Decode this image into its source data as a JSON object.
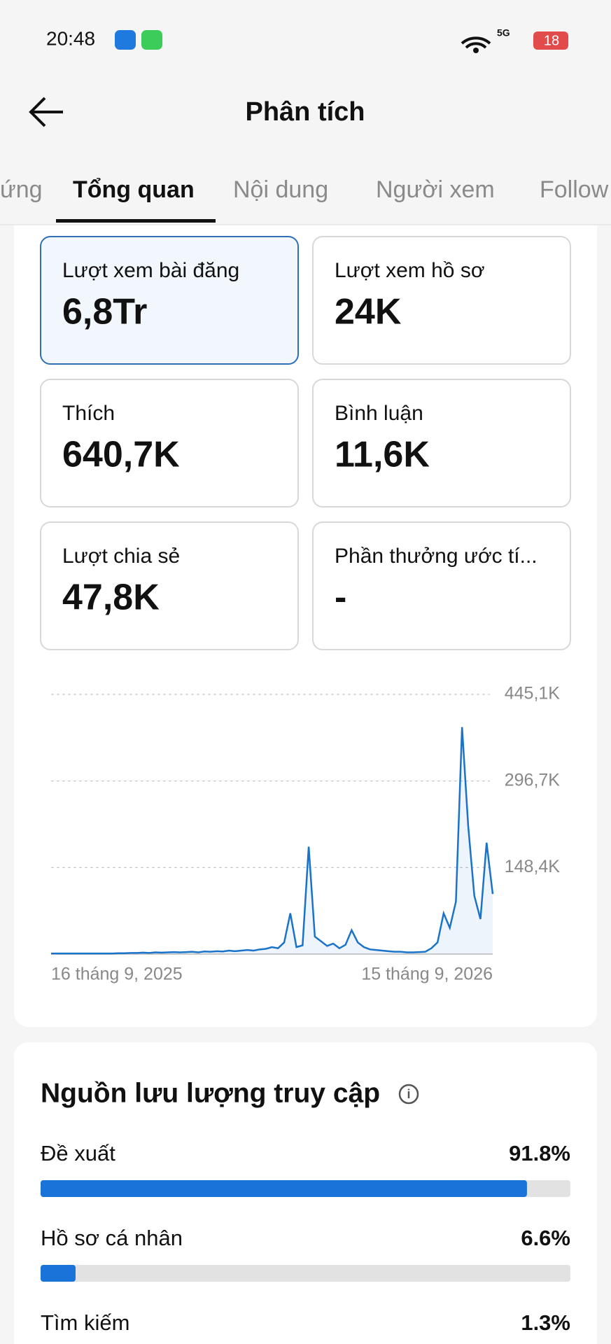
{
  "status_bar": {
    "time": "20:48",
    "network": "5G",
    "battery": "18"
  },
  "header": {
    "title": "Phân tích"
  },
  "tabs": [
    "ứng",
    "Tổng quan",
    "Nội dung",
    "Người xem",
    "Follow"
  ],
  "metrics": [
    {
      "label": "Lượt xem bài đăng",
      "value": "6,8Tr"
    },
    {
      "label": "Lượt xem hồ sơ",
      "value": "24K"
    },
    {
      "label": "Thích",
      "value": "640,7K"
    },
    {
      "label": "Bình luận",
      "value": "11,6K"
    },
    {
      "label": "Lượt chia sẻ",
      "value": "47,8K"
    },
    {
      "label": "Phần thưởng ước tí...",
      "value": "-"
    }
  ],
  "chart_data": {
    "type": "line",
    "color": "#1a73c9",
    "grid": true,
    "ylim": [
      0,
      445100
    ],
    "yticks": [
      {
        "value": 148400,
        "label": "148,4K"
      },
      {
        "value": 296700,
        "label": "296,7K"
      },
      {
        "value": 445100,
        "label": "445,1K"
      }
    ],
    "categories": [
      "16 tháng 9, 2025",
      null,
      null,
      null,
      null,
      null,
      null,
      null,
      null,
      null,
      null,
      null,
      null,
      null,
      null,
      null,
      null,
      null,
      null,
      null,
      null,
      null,
      null,
      null,
      null,
      null,
      null,
      null,
      null,
      null,
      null,
      null,
      null,
      null,
      null,
      null,
      null,
      null,
      null,
      null,
      null,
      null,
      null,
      null,
      null,
      null,
      null,
      null,
      null,
      null,
      null,
      null,
      null,
      null,
      null,
      null,
      null,
      null,
      null,
      null,
      null,
      null,
      null,
      null,
      null,
      null,
      null,
      null,
      null,
      null,
      null,
      null,
      "15 tháng 9, 2026"
    ],
    "values": [
      1000,
      1000,
      1000,
      1000,
      1000,
      1000,
      1000,
      1000,
      1000,
      1000,
      1000,
      1500,
      1500,
      2000,
      2000,
      2500,
      2000,
      3000,
      2500,
      3000,
      3500,
      3000,
      3500,
      4000,
      3000,
      4500,
      4000,
      5000,
      4500,
      6000,
      5000,
      6000,
      7000,
      6000,
      8000,
      9000,
      12000,
      10000,
      20000,
      70000,
      12000,
      15000,
      184000,
      30000,
      22000,
      14000,
      18000,
      10000,
      16000,
      41000,
      20000,
      12000,
      8000,
      7000,
      6000,
      5000,
      4000,
      4000,
      3000,
      3000,
      3500,
      4000,
      10000,
      20000,
      70000,
      45000,
      90000,
      389000,
      220000,
      100000,
      60000,
      191000,
      103000
    ]
  },
  "traffic": {
    "title": "Nguồn lưu lượng truy cập",
    "xlim": [
      0,
      100
    ],
    "color": "#1a73d9",
    "categories": [
      "Đề xuất",
      "Hồ sơ cá nhân",
      "Tìm kiếm"
    ],
    "values": [
      91.8,
      6.6,
      1.3
    ],
    "value_labels": [
      "91.8%",
      "6.6%",
      "1.3%"
    ]
  }
}
